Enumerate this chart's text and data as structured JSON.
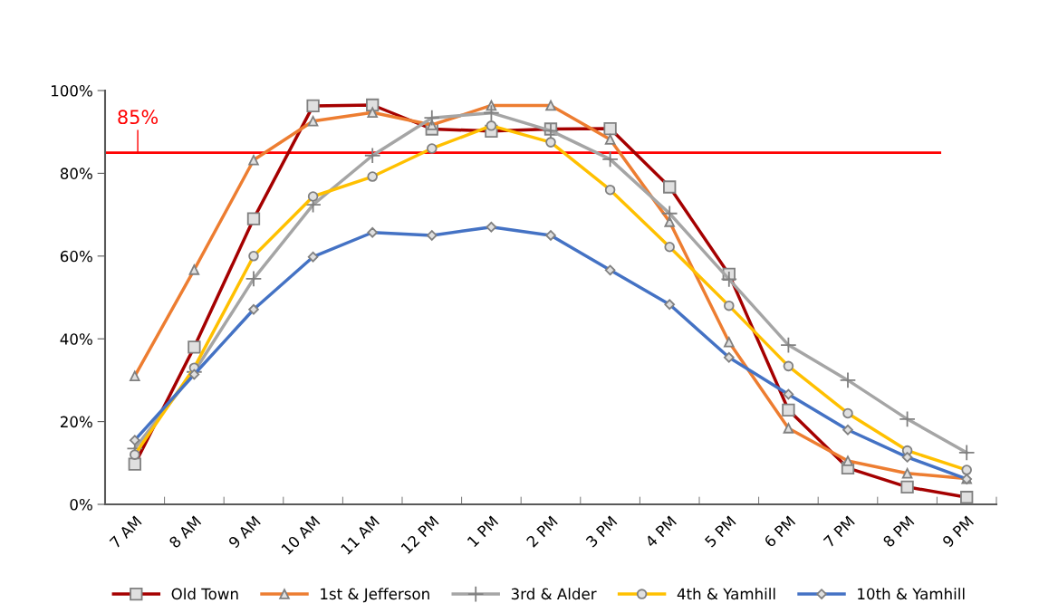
{
  "chart_data": {
    "type": "line",
    "categories": [
      "7 AM",
      "8 AM",
      "9 AM",
      "10 AM",
      "11 AM",
      "12 PM",
      "1 PM",
      "2 PM",
      "3 PM",
      "4 PM",
      "5 PM",
      "6 PM",
      "7 PM",
      "8 PM",
      "9 PM"
    ],
    "series": [
      {
        "name": "Old Town",
        "color": "#a50000",
        "marker": "square",
        "values": [
          9.7,
          38,
          69,
          96.3,
          96.5,
          90.7,
          90.2,
          90.7,
          90.8,
          76.7,
          55.6,
          22.8,
          8.8,
          4.2,
          1.7
        ]
      },
      {
        "name": "1st & Jefferson",
        "color": "#ed7d31",
        "marker": "triangle",
        "values": [
          31,
          56.7,
          83.2,
          92.6,
          94.7,
          91.7,
          96.4,
          96.4,
          88.2,
          68.3,
          39.2,
          18.4,
          10.5,
          7.5,
          6.2
        ]
      },
      {
        "name": "3rd & Alder",
        "color": "#a5a5a5",
        "marker": "cross",
        "values": [
          13.5,
          32,
          54.5,
          72.4,
          84.3,
          93.4,
          94.6,
          90.3,
          83.4,
          70.3,
          54.4,
          38.5,
          30,
          20.6,
          12.5
        ]
      },
      {
        "name": "4th & Yamhill",
        "color": "#ffc000",
        "marker": "circle",
        "values": [
          12,
          33,
          60,
          74.4,
          79.2,
          86,
          91.5,
          87.5,
          76,
          62.2,
          48,
          33.4,
          22,
          13,
          8.3
        ]
      },
      {
        "name": "10th & Yamhill",
        "color": "#4472c4",
        "marker": "diamond",
        "values": [
          15.5,
          31.4,
          47.1,
          59.8,
          65.7,
          65,
          67,
          65,
          56.6,
          48.3,
          35.5,
          26.6,
          18,
          11.4,
          6.1
        ]
      }
    ],
    "ylim": [
      0,
      100
    ],
    "yticks": [
      {
        "value": 0,
        "label": "0%"
      },
      {
        "value": 20,
        "label": "20%"
      },
      {
        "value": 40,
        "label": "40%"
      },
      {
        "value": 60,
        "label": "60%"
      },
      {
        "value": 80,
        "label": "80%"
      },
      {
        "value": 100,
        "label": "100%"
      }
    ],
    "ref_lines": [
      {
        "axis": "y",
        "value": 85,
        "label": "85%",
        "color": "#ff0000",
        "line_style": "solid"
      }
    ],
    "grid": false,
    "legend": "bottom",
    "line_style": "solid"
  }
}
